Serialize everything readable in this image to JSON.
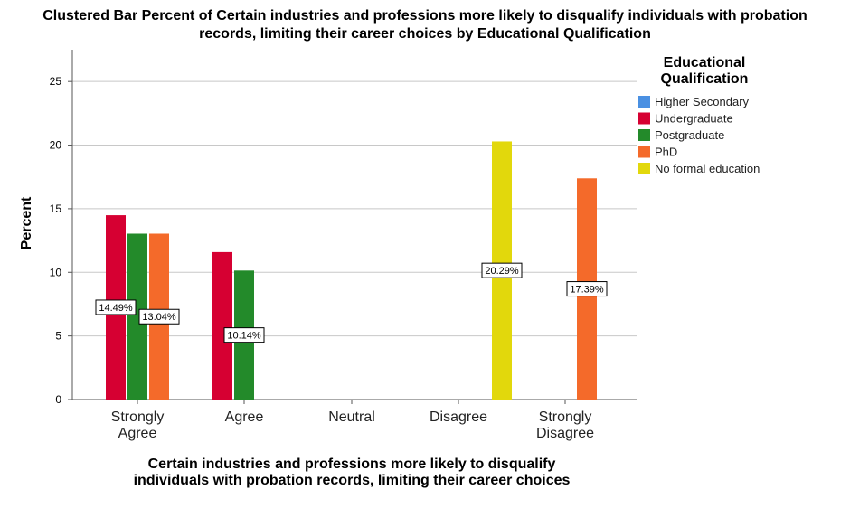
{
  "chart_data": {
    "type": "bar",
    "title_lines": [
      "Clustered Bar Percent of Certain industries and professions more likely to disqualify individuals with probation",
      "records, limiting their career choices by Educational Qualification"
    ],
    "xlabel_lines": [
      "Certain industries and professions more likely to disqualify",
      "individuals with probation records, limiting their career choices"
    ],
    "ylabel": "Percent",
    "ylim": [
      0,
      27.5
    ],
    "yticks": [
      0,
      5,
      10,
      15,
      20,
      25
    ],
    "grid": true,
    "categories": [
      [
        "Strongly",
        "Agree"
      ],
      [
        "Agree"
      ],
      [
        "Neutral"
      ],
      [
        "Disagree"
      ],
      [
        "Strongly",
        "Disagree"
      ]
    ],
    "legend": {
      "title_lines": [
        "Educational",
        "Qualification"
      ],
      "placement": "right"
    },
    "series": [
      {
        "name": "Higher Secondary",
        "color": "#4a90e2",
        "values": [
          0,
          0,
          0,
          0,
          0
        ]
      },
      {
        "name": "Undergraduate",
        "color": "#d60032",
        "values": [
          14.49,
          11.59,
          0,
          0,
          0
        ]
      },
      {
        "name": "Postgraduate",
        "color": "#238a2a",
        "values": [
          13.04,
          10.14,
          0,
          0,
          0
        ]
      },
      {
        "name": "PhD",
        "color": "#f46a2a",
        "values": [
          13.04,
          0,
          0,
          0,
          17.39
        ]
      },
      {
        "name": "No formal education",
        "color": "#e2d80c",
        "values": [
          0,
          0,
          0,
          20.29,
          0
        ]
      }
    ],
    "data_labels": [
      {
        "category": 0,
        "series": 1,
        "text": "14.49%",
        "y": 7.25
      },
      {
        "category": 0,
        "series": 3,
        "text": "13.04%",
        "y": 6.52
      },
      {
        "category": 1,
        "series": 2,
        "text": "10.14%",
        "y": 5.07
      },
      {
        "category": 3,
        "series": 4,
        "text": "20.29%",
        "y": 10.15
      },
      {
        "category": 4,
        "series": 3,
        "text": "17.39%",
        "y": 8.7
      }
    ]
  }
}
